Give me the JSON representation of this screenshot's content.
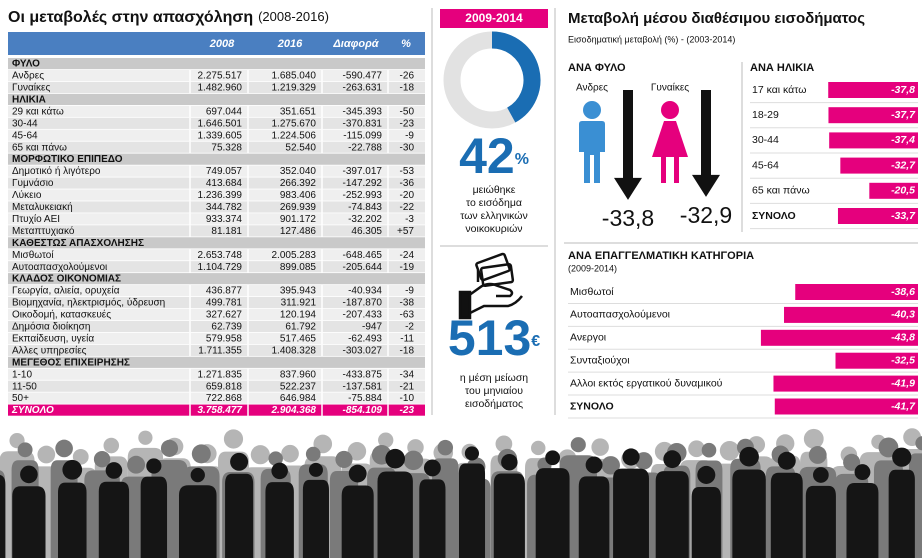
{
  "table": {
    "title": "Οι μεταβολές στην απασχόληση",
    "subtitle": "(2008-2016)",
    "columns": [
      "2008",
      "2016",
      "Διαφορά",
      "%"
    ],
    "sections": [
      {
        "name": "ΦΥΛΟ",
        "rows": [
          [
            "Ανδρες",
            "2.275.517",
            "1.685.040",
            "-590.477",
            "-26"
          ],
          [
            "Γυναίκες",
            "1.482.960",
            "1.219.329",
            "-263.631",
            "-18"
          ]
        ]
      },
      {
        "name": "ΗΛΙΚΙΑ",
        "rows": [
          [
            "29 και κάτω",
            "697.044",
            "351.651",
            "-345.393",
            "-50"
          ],
          [
            "30-44",
            "1.646.501",
            "1.275.670",
            "-370.831",
            "-23"
          ],
          [
            "45-64",
            "1.339.605",
            "1.224.506",
            "-115.099",
            "-9"
          ],
          [
            "65 και πάνω",
            "75.328",
            "52.540",
            "-22.788",
            "-30"
          ]
        ]
      },
      {
        "name": "ΜΟΡΦΩΤΙΚΟ ΕΠΙΠΕΔΟ",
        "rows": [
          [
            "Δημοτικό ή λιγότερο",
            "749.057",
            "352.040",
            "-397.017",
            "-53"
          ],
          [
            "Γυμνάσιο",
            "413.684",
            "266.392",
            "-147.292",
            "-36"
          ],
          [
            "Λύκειο",
            "1.236.399",
            "983.406",
            "-252.993",
            "-20"
          ],
          [
            "Μεταλυκειακή",
            "344.782",
            "269.939",
            "-74.843",
            "-22"
          ],
          [
            "Πτυχίο ΑΕΙ",
            "933.374",
            "901.172",
            "-32.202",
            "-3"
          ],
          [
            "Μεταπτυχιακό",
            "81.181",
            "127.486",
            "46.305",
            "+57"
          ]
        ]
      },
      {
        "name": "ΚΑΘΕΣΤΩΣ ΑΠΑΣΧΟΛΗΣΗΣ",
        "rows": [
          [
            "Μισθωτοί",
            "2.653.748",
            "2.005.283",
            "-648.465",
            "-24"
          ],
          [
            "Αυτοαπασχολούμενοι",
            "1.104.729",
            "899.085",
            "-205.644",
            "-19"
          ]
        ]
      },
      {
        "name": "ΚΛΑΔΟΣ ΟΙΚΟΝΟΜΙΑΣ",
        "rows": [
          [
            "Γεωργία, αλιεία, ορυχεία",
            "436.877",
            "395.943",
            "-40.934",
            "-9"
          ],
          [
            "Βιομηχανία, ηλεκτρισμός, ύδρευση",
            "499.781",
            "311.921",
            "-187.870",
            "-38"
          ],
          [
            "Οικοδομή, κατασκευές",
            "327.627",
            "120.194",
            "-207.433",
            "-63"
          ],
          [
            "Δημόσια διοίκηση",
            "62.739",
            "61.792",
            "-947",
            "-2"
          ],
          [
            "Εκπαίδευση, υγεία",
            "579.958",
            "517.465",
            "-62.493",
            "-11"
          ],
          [
            "Αλλες υπηρεσίες",
            "1.711.355",
            "1.408.328",
            "-303.027",
            "-18"
          ]
        ]
      },
      {
        "name": "ΜΕΓΕΘΟΣ ΕΠΙΧΕΙΡΗΣΗΣ",
        "rows": [
          [
            "1-10",
            "1.271.835",
            "837.960",
            "-433.875",
            "-34"
          ],
          [
            "11-50",
            "659.818",
            "522.237",
            "-137.581",
            "-21"
          ],
          [
            "50+",
            "722.868",
            "646.984",
            "-75.884",
            "-10"
          ]
        ]
      }
    ],
    "total": [
      "ΣΥΝΟΛΟ",
      "3.758.477",
      "2.904.368",
      "-854.109",
      "-23"
    ]
  },
  "stat": {
    "value": 513,
    "unit": "€",
    "caption": [
      "η μέση μείωση",
      "του μηνιαίου",
      "εισοδήματος"
    ]
  },
  "income": {
    "title": "Μεταβολή μέσου διαθέσιμου εισοδήματος",
    "subtitle": "Εισοδηματική μεταβολή (%) - (2003-2014)"
  },
  "chart_data": [
    {
      "type": "pie",
      "title": "2009-2014",
      "values": [
        42
      ],
      "unit": "%",
      "color": "#1a6db3",
      "caption": [
        "μειώθηκε",
        "το εισόδημα",
        "των ελληνικών",
        "νοικοκυριών"
      ]
    },
    {
      "type": "arrow",
      "title": "ΑΝΑ ΦΥΛΟ",
      "categories": [
        "Ανδρες",
        "Γυναίκες"
      ],
      "values": [
        -33.8,
        -32.9
      ],
      "value_labels": [
        "-33,8",
        "-32,9"
      ],
      "colors": [
        "#3a8fd3",
        "#e5007d"
      ],
      "ylim": [
        -40,
        0
      ]
    },
    {
      "type": "bar",
      "title": "ΑΝΑ ΗΛΙΚΙΑ",
      "categories": [
        "17 και κάτω",
        "18-29",
        "30-44",
        "45-64",
        "65 και πάνω",
        "ΣΥΝΟΛΟ"
      ],
      "values": [
        -37.8,
        -37.7,
        -37.4,
        -32.7,
        -20.5,
        -33.7
      ],
      "value_labels": [
        "-37,8",
        "-37,7",
        "-37,4",
        "-32,7",
        "-20,5",
        "-33,7"
      ],
      "color": "#e5007d",
      "xlim": [
        -40,
        0
      ]
    },
    {
      "type": "bar",
      "title": "ΑΝΑ ΕΠΑΓΓΕΛΜΑΤΙΚΗ ΚΑΤΗΓΟΡΙΑ",
      "subtitle": "(2009-2014)",
      "categories": [
        "Μισθωτοί",
        "Αυτοαπασχολούμενοι",
        "Ανεργοι",
        "Συνταξιούχοι",
        "Αλλοι εκτός εργατικού δυναμικού",
        "ΣΥΝΟΛΟ"
      ],
      "values": [
        -38.6,
        -40.3,
        -43.8,
        -32.5,
        -41.9,
        -41.7
      ],
      "value_labels": [
        "-38,6",
        "-40,3",
        "-43,8",
        "-32,5",
        "-41,9",
        "-41,7"
      ],
      "color": "#e5007d",
      "xlim": [
        -45,
        -20
      ]
    }
  ]
}
